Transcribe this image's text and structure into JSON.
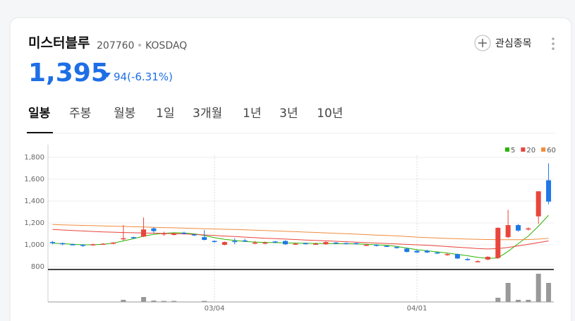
{
  "header": {
    "name": "미스터블루",
    "code": "207760",
    "market": "KOSDAQ",
    "price": "1,395",
    "change": "94(-6.31%)",
    "watch_button": "관심종목"
  },
  "tabs": [
    "일봉",
    "주봉",
    "월봉",
    "1일",
    "3개월",
    "1년",
    "3년",
    "10년"
  ],
  "chart_data": {
    "type": "candlestick",
    "categories": [
      null,
      null,
      null,
      null,
      null,
      null,
      null,
      null,
      null,
      null,
      null,
      null,
      null,
      null,
      null,
      null,
      "03/04",
      null,
      null,
      null,
      null,
      null,
      null,
      null,
      null,
      null,
      null,
      null,
      null,
      null,
      null,
      null,
      null,
      null,
      null,
      null,
      "04/01",
      null,
      null,
      null,
      null,
      null,
      null,
      null,
      null,
      null,
      null,
      null,
      null,
      null
    ],
    "open": [
      1025,
      1015,
      1005,
      1000,
      995,
      1005,
      1010,
      1050,
      1070,
      1075,
      1150,
      1095,
      1095,
      1110,
      1095,
      1070,
      1035,
      1000,
      1035,
      1040,
      1015,
      1015,
      1030,
      1035,
      1005,
      1015,
      1005,
      1005,
      1020,
      1015,
      1015,
      995,
      1000,
      990,
      980,
      965,
      945,
      945,
      930,
      905,
      915,
      870,
      845,
      865,
      880,
      1070,
      1180,
      1140,
      1260,
      1590
    ],
    "high": [
      1035,
      1020,
      1010,
      1005,
      1010,
      1015,
      1025,
      1180,
      1075,
      1250,
      1160,
      1120,
      1110,
      1120,
      1100,
      1135,
      1040,
      1030,
      1060,
      1055,
      1035,
      1030,
      1035,
      1040,
      1020,
      1020,
      1020,
      1030,
      1025,
      1020,
      1020,
      1010,
      1005,
      995,
      985,
      975,
      955,
      955,
      935,
      925,
      920,
      880,
      860,
      895,
      1160,
      1320,
      1190,
      1160,
      1490,
      1745
    ],
    "low": [
      1005,
      995,
      995,
      980,
      990,
      1000,
      1005,
      1040,
      1055,
      1070,
      1110,
      1080,
      1085,
      1095,
      1080,
      1040,
      1020,
      995,
      1005,
      1025,
      1005,
      1005,
      1015,
      1000,
      1000,
      1005,
      1000,
      1000,
      1005,
      1005,
      1005,
      990,
      985,
      980,
      965,
      930,
      925,
      925,
      915,
      900,
      870,
      855,
      840,
      860,
      870,
      1060,
      1120,
      1130,
      1190,
      1370
    ],
    "close": [
      1015,
      1005,
      1000,
      990,
      1005,
      1010,
      1020,
      1060,
      1065,
      1140,
      1125,
      1105,
      1100,
      1105,
      1090,
      1045,
      1030,
      1025,
      1025,
      1035,
      1020,
      1020,
      1025,
      1005,
      1010,
      1010,
      1010,
      1025,
      1015,
      1010,
      1010,
      1000,
      995,
      985,
      975,
      935,
      930,
      930,
      925,
      915,
      875,
      860,
      850,
      890,
      1155,
      1180,
      1130,
      1150,
      1489,
      1395
    ],
    "volume": [
      0.3,
      0.3,
      0.3,
      0.3,
      0.3,
      0.3,
      0.3,
      3,
      0.3,
      7,
      2,
      1.5,
      1.5,
      0.3,
      0.3,
      1.5,
      0.3,
      0.3,
      0.3,
      0.3,
      0.3,
      0.3,
      0.3,
      0.3,
      0.3,
      0.3,
      0.3,
      0.3,
      0.3,
      0.3,
      0.3,
      0.3,
      0.3,
      0.3,
      0.3,
      0.3,
      0.3,
      0.3,
      0.3,
      0.3,
      0.3,
      0.3,
      0.3,
      0.3,
      6,
      27,
      3,
      3,
      40,
      27
    ],
    "volume_lim": [
      0,
      42
    ],
    "up_color": "#e8453c",
    "down_color": "#1e78e6",
    "volume_color": "#999999",
    "moving_averages": [
      {
        "name": "5",
        "color": "#2db400",
        "values": [
          1015,
          1010,
          1005,
          1000,
          1000,
          1005,
          1015,
          1035,
          1055,
          1080,
          1095,
          1105,
          1110,
          1108,
          1100,
          1085,
          1065,
          1050,
          1040,
          1030,
          1025,
          1022,
          1020,
          1018,
          1015,
          1014,
          1012,
          1012,
          1010,
          1010,
          1008,
          1005,
          1000,
          995,
          985,
          970,
          955,
          945,
          935,
          925,
          912,
          900,
          885,
          875,
          880,
          940,
          1010,
          1080,
          1170,
          1270
        ]
      },
      {
        "name": "20",
        "color": "#e8453c",
        "values": [
          1140,
          1135,
          1130,
          1126,
          1122,
          1118,
          1115,
          1112,
          1110,
          1108,
          1106,
          1104,
          1102,
          1099,
          1095,
          1090,
          1085,
          1080,
          1075,
          1070,
          1065,
          1060,
          1056,
          1052,
          1048,
          1044,
          1040,
          1036,
          1032,
          1028,
          1024,
          1020,
          1016,
          1012,
          1008,
          1004,
          1000,
          996,
          990,
          984,
          978,
          972,
          965,
          962,
          965,
          975,
          990,
          1005,
          1020,
          1035
        ]
      },
      {
        "name": "60",
        "color": "#f08c3c",
        "values": [
          1185,
          1182,
          1180,
          1177,
          1175,
          1172,
          1170,
          1168,
          1165,
          1163,
          1160,
          1157,
          1155,
          1152,
          1150,
          1147,
          1145,
          1142,
          1140,
          1137,
          1134,
          1130,
          1127,
          1123,
          1120,
          1116,
          1113,
          1109,
          1105,
          1101,
          1097,
          1093,
          1089,
          1085,
          1081,
          1076,
          1070,
          1066,
          1062,
          1058,
          1055,
          1052,
          1050,
          1048,
          1047,
          1046,
          1046,
          1048,
          1052,
          1060
        ]
      }
    ],
    "ylim": [
      774,
      1916
    ],
    "yticks": [
      {
        "value": 800,
        "label": "800"
      },
      {
        "value": 1000,
        "label": "1,000"
      },
      {
        "value": 1200,
        "label": "1,200"
      },
      {
        "value": 1400,
        "label": "1,400"
      },
      {
        "value": 1600,
        "label": "1,600"
      },
      {
        "value": 1800,
        "label": "1,800"
      }
    ],
    "grid": true
  }
}
